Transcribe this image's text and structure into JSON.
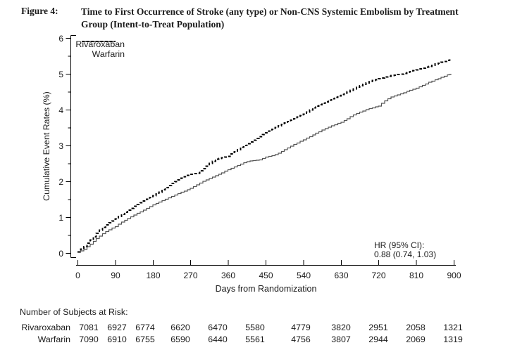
{
  "header": {
    "figure_label": "Figure 4:",
    "title_line1": "Time to First Occurrence of Stroke (any type) or Non-CNS Systemic Embolism by Treatment",
    "title_line2": "Group (Intent-to-Treat Population)"
  },
  "chart_data": {
    "type": "line",
    "subtype": "kaplan-meier-cumulative-event-curve",
    "title": "Time to First Occurrence of Stroke (any type) or Non-CNS Systemic Embolism by Treatment Group (Intent-to-Treat Population)",
    "xlabel": "Days from Randomization",
    "ylabel": "Cumulative Event Rates (%)",
    "xlim": [
      0,
      900
    ],
    "ylim": [
      0,
      6
    ],
    "x_ticks": [
      0,
      90,
      180,
      270,
      360,
      450,
      540,
      630,
      720,
      810,
      900
    ],
    "y_ticks": [
      0,
      1,
      2,
      3,
      4,
      5,
      6
    ],
    "y_minor_ticks": [
      0.5,
      1.5,
      2.5,
      3.5,
      4.5,
      5.5
    ],
    "grid": false,
    "legend_position": "top-left-inside",
    "annotation_line1": "HR (95% CI):",
    "annotation_line2": "0.88 (0.74, 1.03)",
    "series": [
      {
        "name": "Rivaroxaban",
        "line_style": "solid",
        "color": "#555555",
        "x": [
          0,
          15,
          30,
          45,
          60,
          75,
          90,
          105,
          120,
          135,
          150,
          165,
          180,
          195,
          210,
          225,
          240,
          255,
          270,
          285,
          300,
          315,
          330,
          345,
          360,
          375,
          390,
          405,
          420,
          435,
          450,
          465,
          480,
          495,
          510,
          525,
          540,
          555,
          570,
          585,
          600,
          615,
          630,
          645,
          660,
          675,
          690,
          705,
          720,
          735,
          750,
          765,
          780,
          795,
          810,
          825,
          840,
          855,
          870,
          885,
          893
        ],
        "y": [
          0.02,
          0.1,
          0.25,
          0.4,
          0.54,
          0.65,
          0.74,
          0.86,
          0.96,
          1.06,
          1.15,
          1.25,
          1.34,
          1.42,
          1.5,
          1.58,
          1.66,
          1.73,
          1.8,
          1.9,
          2.0,
          2.08,
          2.16,
          2.24,
          2.32,
          2.4,
          2.48,
          2.55,
          2.58,
          2.6,
          2.68,
          2.72,
          2.78,
          2.88,
          2.98,
          3.07,
          3.16,
          3.25,
          3.34,
          3.43,
          3.51,
          3.58,
          3.65,
          3.75,
          3.85,
          3.93,
          4.0,
          4.05,
          4.1,
          4.25,
          4.35,
          4.41,
          4.47,
          4.54,
          4.6,
          4.68,
          4.76,
          4.83,
          4.9,
          4.97,
          5.0
        ]
      },
      {
        "name": "Warfarin",
        "line_style": "dashed",
        "color": "#000000",
        "x": [
          0,
          15,
          30,
          45,
          60,
          75,
          90,
          105,
          120,
          135,
          150,
          165,
          180,
          195,
          210,
          225,
          240,
          255,
          270,
          285,
          300,
          315,
          330,
          345,
          360,
          375,
          390,
          405,
          420,
          435,
          450,
          465,
          480,
          495,
          510,
          525,
          540,
          555,
          570,
          585,
          600,
          615,
          630,
          645,
          660,
          675,
          690,
          705,
          720,
          735,
          750,
          765,
          780,
          795,
          810,
          825,
          840,
          855,
          870,
          885,
          893
        ],
        "y": [
          0.03,
          0.18,
          0.36,
          0.55,
          0.72,
          0.84,
          0.95,
          1.08,
          1.2,
          1.3,
          1.4,
          1.5,
          1.6,
          1.7,
          1.82,
          1.94,
          2.04,
          2.13,
          2.2,
          2.23,
          2.35,
          2.5,
          2.62,
          2.66,
          2.7,
          2.82,
          2.95,
          3.05,
          3.15,
          3.25,
          3.35,
          3.45,
          3.55,
          3.63,
          3.71,
          3.79,
          3.87,
          3.99,
          4.1,
          4.18,
          4.26,
          4.34,
          4.42,
          4.5,
          4.58,
          4.67,
          4.75,
          4.81,
          4.86,
          4.91,
          4.95,
          4.98,
          5.01,
          5.06,
          5.11,
          5.16,
          5.21,
          5.27,
          5.32,
          5.37,
          5.4
        ]
      }
    ]
  },
  "at_risk": {
    "heading": "Number of Subjects at Risk:",
    "days": [
      0,
      90,
      180,
      270,
      360,
      450,
      540,
      630,
      720,
      810,
      900
    ],
    "rows": [
      {
        "label": "Rivaroxaban",
        "values": [
          "7081",
          "6927",
          "6774",
          "6620",
          "6470",
          "5580",
          "4779",
          "3820",
          "2951",
          "2058",
          "1321"
        ]
      },
      {
        "label": "Warfarin",
        "values": [
          "7090",
          "6910",
          "6755",
          "6590",
          "6440",
          "5561",
          "4756",
          "3807",
          "2944",
          "2069",
          "1319"
        ]
      }
    ]
  },
  "colors": {
    "text": "#1b1b1b",
    "axis": "#000000",
    "curve_solid": "#555555",
    "curve_dashed": "#000000"
  }
}
